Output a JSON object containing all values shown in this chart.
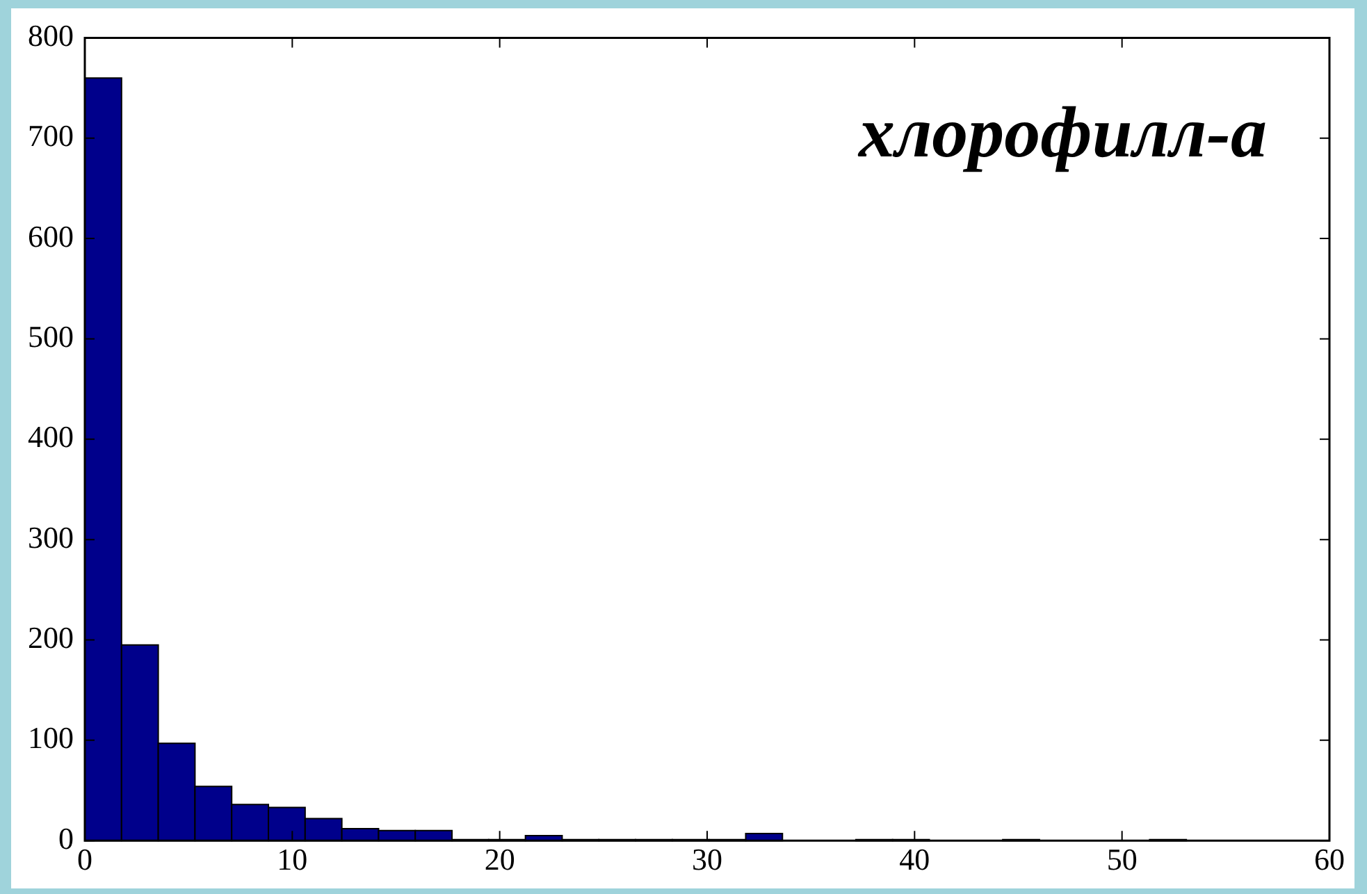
{
  "chart_data": {
    "type": "histogram",
    "annotations": [
      "хлорофилл-а"
    ],
    "bins": [
      0,
      1.77,
      3.54,
      5.31,
      7.08,
      8.85,
      10.62,
      12.39,
      14.16,
      15.93,
      17.7,
      19.47,
      21.24,
      23.01,
      24.78,
      26.55,
      28.32,
      30.09,
      31.86,
      33.63,
      35.4,
      37.17,
      38.94,
      40.71,
      42.48,
      44.25,
      46.02,
      47.79,
      49.56,
      51.33,
      53.1
    ],
    "values": [
      760,
      195,
      97,
      54,
      36,
      33,
      22,
      12,
      10,
      10,
      1,
      1,
      5,
      1,
      1,
      1,
      1,
      1,
      7,
      0,
      0,
      1,
      1,
      0,
      0,
      1,
      0,
      0,
      0,
      1
    ],
    "color": "#00008b",
    "xlim": [
      0,
      60
    ],
    "xticks": [
      0,
      10,
      20,
      30,
      40,
      50,
      60
    ],
    "ylim": [
      0,
      800
    ],
    "yticks": [
      0,
      100,
      200,
      300,
      400,
      500,
      600,
      700,
      800
    ],
    "grid": false,
    "legend": false
  }
}
